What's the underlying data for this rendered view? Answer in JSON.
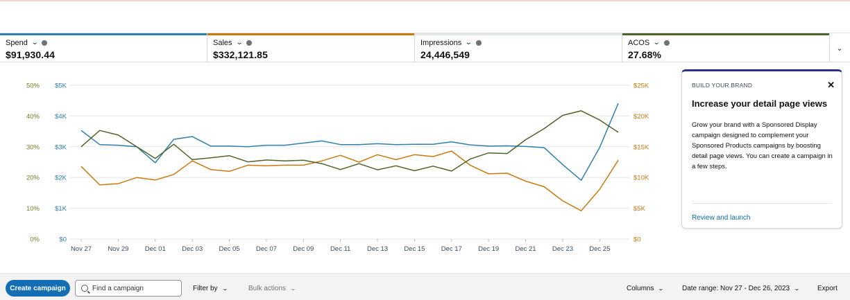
{
  "metrics": [
    {
      "label": "Spend",
      "value": "$91,930.44",
      "color": "#2f7fab"
    },
    {
      "label": "Sales",
      "value": "$332,121.85",
      "color": "#c9790f"
    },
    {
      "label": "Impressions",
      "value": "24,446,549",
      "color": "#e3e6e6"
    },
    {
      "label": "ACOS",
      "value": "27.68%",
      "color": "#4f6228"
    }
  ],
  "chart_data": {
    "type": "line",
    "x": [
      "Nov 27",
      "Nov 28",
      "Nov 29",
      "Nov 30",
      "Dec 01",
      "Dec 02",
      "Dec 03",
      "Dec 04",
      "Dec 05",
      "Dec 06",
      "Dec 07",
      "Dec 08",
      "Dec 09",
      "Dec 10",
      "Dec 11",
      "Dec 12",
      "Dec 13",
      "Dec 14",
      "Dec 15",
      "Dec 16",
      "Dec 17",
      "Dec 18",
      "Dec 19",
      "Dec 20",
      "Dec 21",
      "Dec 22",
      "Dec 23",
      "Dec 24",
      "Dec 25",
      "Dec 26"
    ],
    "x_tick_labels": [
      "Nov 27",
      "Nov 29",
      "Dec 01",
      "Dec 03",
      "Dec 05",
      "Dec 07",
      "Dec 09",
      "Dec 11",
      "Dec 13",
      "Dec 15",
      "Dec 17",
      "Dec 19",
      "Dec 21",
      "Dec 23",
      "Dec 25"
    ],
    "axes": {
      "acos": {
        "ticks": [
          "0%",
          "10%",
          "20%",
          "30%",
          "40%",
          "50%"
        ],
        "range": [
          0,
          50
        ]
      },
      "spend": {
        "ticks": [
          "$0",
          "$1K",
          "$2K",
          "$3K",
          "$4K",
          "$5K"
        ],
        "range": [
          0,
          5000
        ]
      },
      "sales": {
        "ticks": [
          "$0",
          "$5K",
          "$10K",
          "$15K",
          "$20K",
          "$25K"
        ],
        "range": [
          0,
          25000
        ]
      }
    },
    "series": [
      {
        "axis": "spend",
        "color": "#2f7fab",
        "values": [
          3530,
          3070,
          3050,
          3000,
          2480,
          3240,
          3330,
          3020,
          3020,
          3000,
          3050,
          3050,
          3120,
          3190,
          3070,
          3070,
          3100,
          3070,
          3080,
          3080,
          3160,
          3060,
          3020,
          3030,
          3010,
          2970,
          2420,
          1910,
          2980,
          4410
        ]
      },
      {
        "axis": "sales",
        "color": "#c9790f",
        "values": [
          11800,
          8800,
          9000,
          10000,
          9600,
          10500,
          12700,
          11300,
          11000,
          12000,
          11900,
          12000,
          12000,
          12700,
          13600,
          12500,
          13700,
          12900,
          13700,
          13400,
          14300,
          12000,
          10600,
          10700,
          9400,
          8500,
          6200,
          4600,
          8100,
          12800
        ]
      },
      {
        "axis": "acos",
        "color": "#4f6228",
        "values": [
          30,
          35.3,
          33.8,
          30,
          26.2,
          30.8,
          25.8,
          26.4,
          27.1,
          25.1,
          25.7,
          25.4,
          25.6,
          24.5,
          22.6,
          24.5,
          22.5,
          23.8,
          22.2,
          23.7,
          22.1,
          26,
          28,
          27.8,
          32.3,
          35.9,
          40.2,
          41.7,
          38.7,
          34.7
        ]
      }
    ]
  },
  "card": {
    "eyebrow": "BUILD YOUR BRAND",
    "title": "Increase your detail page views",
    "body": "Grow your brand with a Sponsored Display campaign designed to complement your Sponsored Products campaigns by boosting detail page views. You can create a campaign in a few steps.",
    "link": "Review and launch",
    "close": "✕"
  },
  "toolbar": {
    "create_campaign": "Create campaign",
    "search_placeholder": "Find a campaign",
    "filter_by": "Filter by",
    "bulk_actions": "Bulk actions",
    "columns": "Columns",
    "date_range": "Date range: Nov 27 - Dec 26, 2023",
    "export": "Export"
  },
  "icons": {
    "info": "info-icon",
    "chevron": "chevron-down-icon",
    "search": "search-icon",
    "close": "close-icon"
  }
}
